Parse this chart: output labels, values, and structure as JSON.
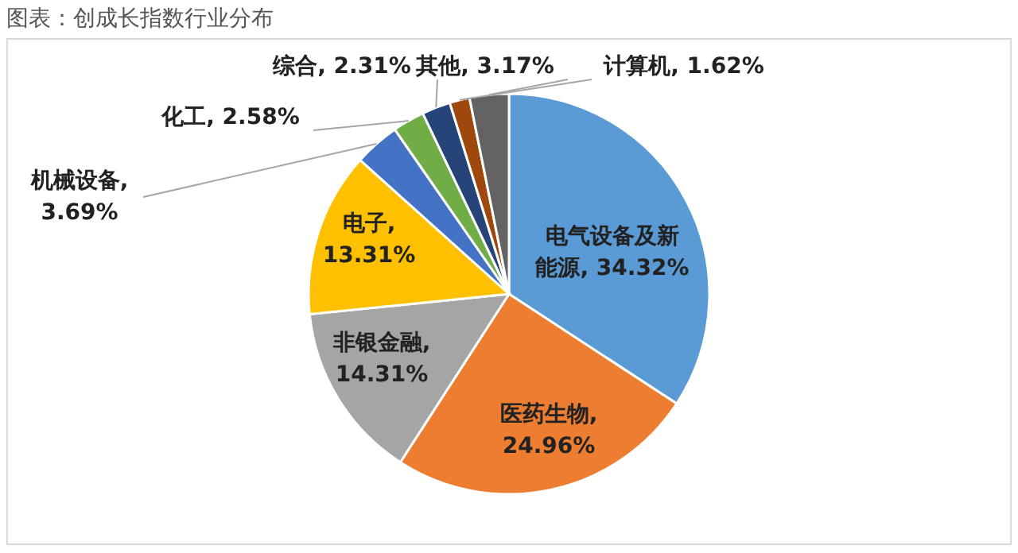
{
  "chart_data": {
    "type": "pie",
    "title": "图表：创成长指数行业分布",
    "categories": [
      "电气设备及新能源",
      "医药生物",
      "非银金融",
      "电子",
      "机械设备",
      "化工",
      "综合",
      "计算机",
      "其他"
    ],
    "values": [
      34.32,
      24.96,
      14.31,
      13.31,
      3.69,
      2.58,
      2.31,
      1.62,
      3.17
    ],
    "colors": [
      "#5b9bd5",
      "#ed7d31",
      "#a5a5a5",
      "#ffc000",
      "#4472c4",
      "#70ad47",
      "#264478",
      "#9e480e",
      "#636363"
    ],
    "value_labels": [
      ", 34.32%",
      ", 24.96%",
      ", 14.31%",
      ", 13.31%",
      ", 3.69%",
      ", 2.58%",
      ", 2.31%",
      ", 1.62%",
      ", 3.17%"
    ]
  }
}
